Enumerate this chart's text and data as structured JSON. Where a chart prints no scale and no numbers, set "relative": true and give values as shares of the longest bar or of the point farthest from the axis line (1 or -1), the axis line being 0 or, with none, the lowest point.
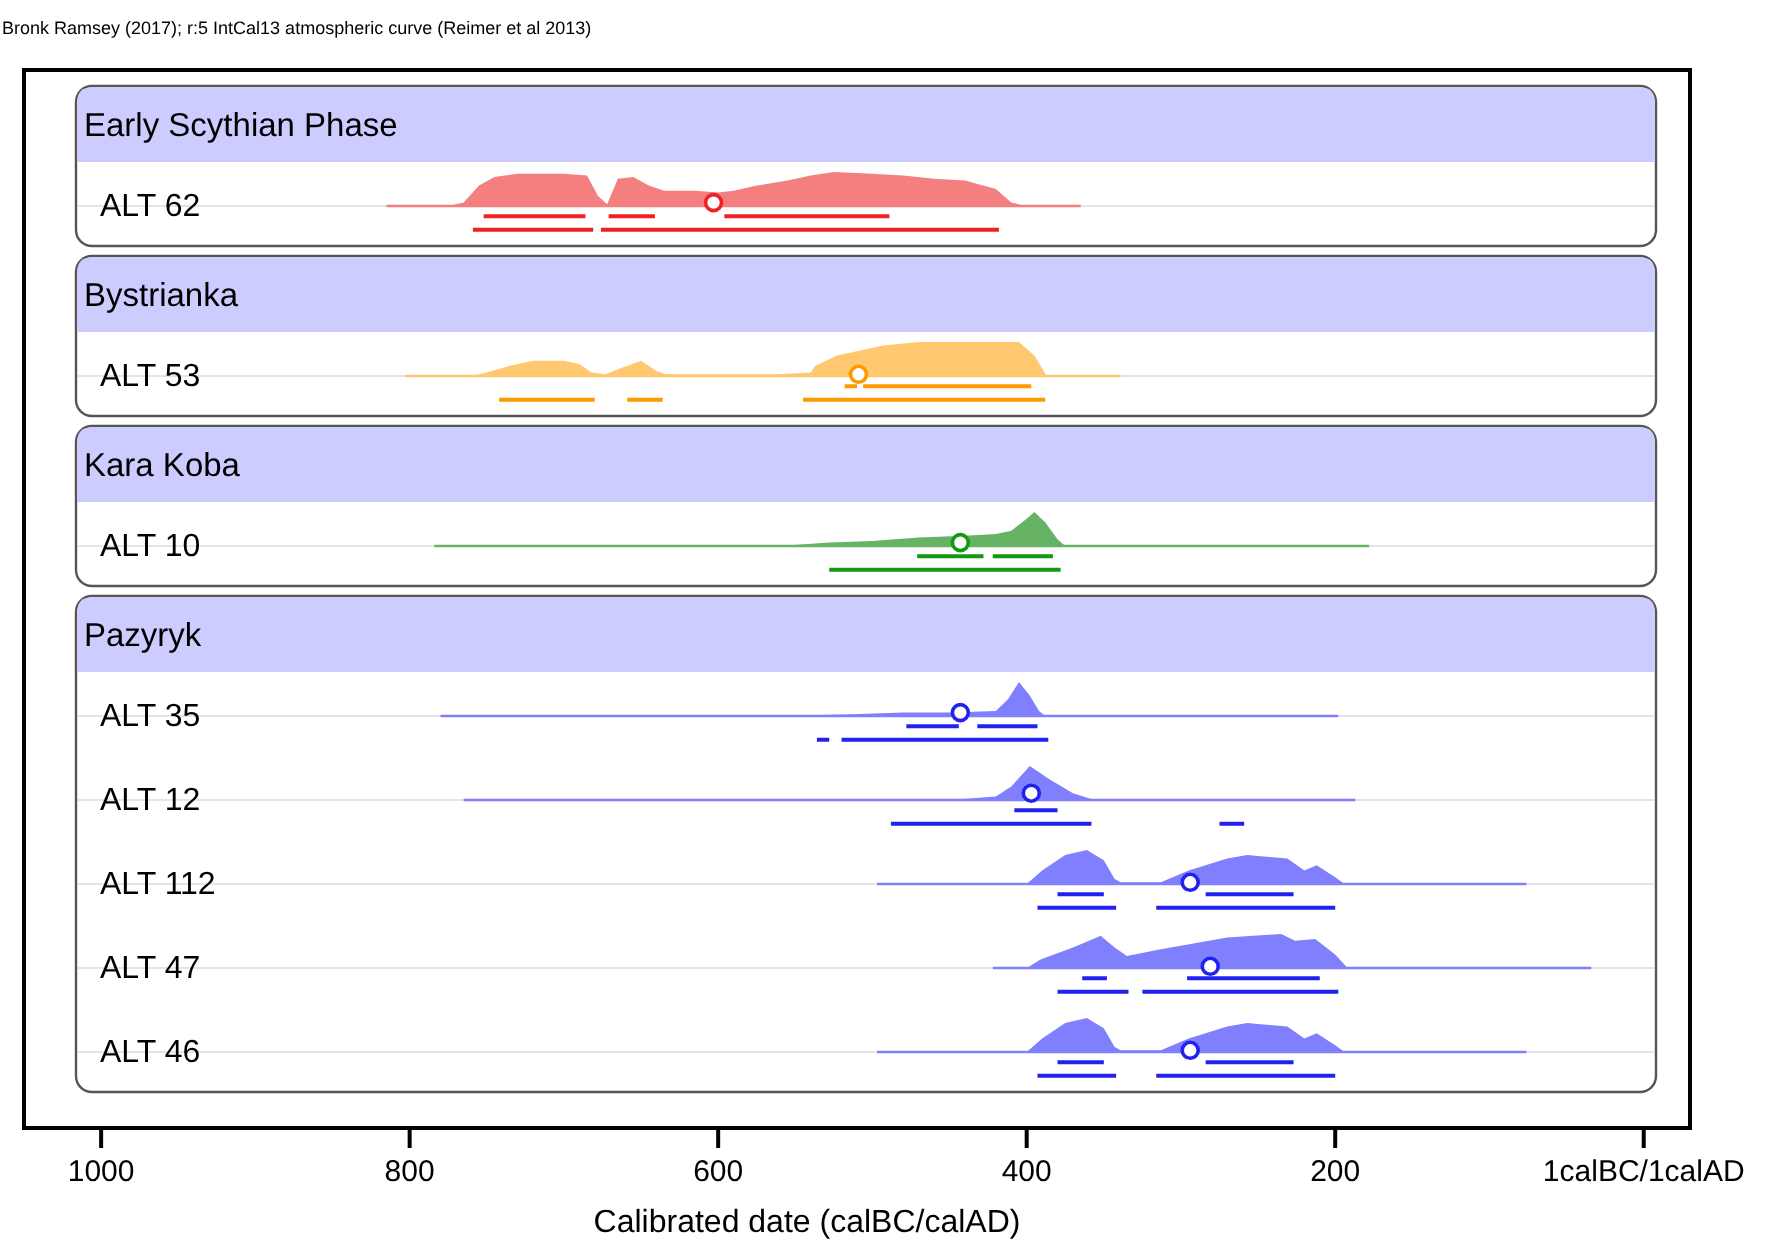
{
  "chart_data": [
    {
      "type": "area",
      "relative": true,
      "title": "Early Scythian Phase",
      "annotations": [
        "Bronk Ramsey (2017); r:5  IntCal13 atmospheric curve (Reimer et al 2013)"
      ],
      "xlim": [
        1050,
        -30
      ],
      "tick_labels": false,
      "series": [
        {
          "name": "ALT 62",
          "color": "#f47f7f",
          "x": [
            815,
            775,
            765,
            755,
            745,
            730,
            700,
            685,
            678,
            672,
            665,
            655,
            645,
            635,
            615,
            600,
            590,
            575,
            555,
            540,
            525,
            500,
            480,
            460,
            440,
            420,
            410,
            400,
            365
          ],
          "values": [
            0,
            0,
            0.1,
            0.6,
            0.85,
            0.95,
            0.95,
            0.9,
            0.3,
            0.05,
            0.8,
            0.85,
            0.6,
            0.45,
            0.45,
            0.4,
            0.45,
            0.6,
            0.75,
            0.9,
            1.0,
            0.95,
            0.9,
            0.8,
            0.75,
            0.5,
            0.1,
            0,
            0
          ]
        },
        {
          "type": "line",
          "color": "#ee2222",
          "x": [
            752,
            686,
            680,
            671,
            641,
            620,
            596,
            489
          ],
          "values": [
            -0.3,
            -0.3,
            null,
            -0.3,
            -0.3,
            null,
            -0.3,
            -0.3
          ]
        },
        {
          "type": "line",
          "color": "#ee2222",
          "x": [
            759,
            681,
            678,
            676,
            418
          ],
          "values": [
            -0.7,
            -0.7,
            null,
            -0.7,
            -0.7
          ]
        },
        {
          "type": "scatter",
          "marker": "circle",
          "color": "#ee2222",
          "x": [
            603
          ],
          "values": [
            0.1
          ]
        }
      ]
    },
    {
      "type": "area",
      "relative": true,
      "title": "Bystrianka",
      "xlim": [
        1050,
        -30
      ],
      "tick_labels": false,
      "series": [
        {
          "name": "ALT 53",
          "color": "#ffc870",
          "x": [
            803,
            760,
            750,
            735,
            720,
            700,
            690,
            682,
            673,
            665,
            650,
            640,
            634,
            560,
            540,
            537,
            523,
            493,
            470,
            440,
            405,
            395,
            387,
            339
          ],
          "values": [
            0,
            0,
            0.1,
            0.3,
            0.45,
            0.45,
            0.35,
            0.1,
            0.05,
            0.2,
            0.45,
            0.15,
            0.05,
            0.05,
            0.1,
            0.3,
            0.6,
            0.9,
            1.0,
            1.0,
            1.0,
            0.6,
            0,
            0
          ]
        },
        {
          "type": "line",
          "color": "#ff9900",
          "x": [
            518,
            510,
            508,
            506,
            397
          ],
          "values": [
            -0.3,
            -0.3,
            null,
            -0.3,
            -0.3
          ]
        },
        {
          "type": "line",
          "color": "#ff9900",
          "x": [
            742,
            680,
            670,
            659,
            636,
            590,
            545,
            388
          ],
          "values": [
            -0.7,
            -0.7,
            null,
            -0.7,
            -0.7,
            null,
            -0.7,
            -0.7
          ]
        },
        {
          "type": "scatter",
          "marker": "circle",
          "color": "#ff9900",
          "x": [
            509
          ],
          "values": [
            0.05
          ]
        }
      ]
    },
    {
      "type": "area",
      "relative": true,
      "title": "Kara Koba",
      "xlim": [
        1050,
        -30
      ],
      "tick_labels": false,
      "series": [
        {
          "name": "ALT 10",
          "color": "#66b366",
          "x": [
            784,
            560,
            528,
            500,
            470,
            440,
            420,
            410,
            400,
            395,
            388,
            380,
            375,
            178
          ],
          "values": [
            0,
            0,
            0.1,
            0.15,
            0.25,
            0.3,
            0.35,
            0.45,
            0.8,
            1.0,
            0.7,
            0.2,
            0,
            0
          ]
        },
        {
          "type": "line",
          "color": "#119911",
          "x": [
            471,
            428,
            425,
            422,
            383
          ],
          "values": [
            -0.3,
            -0.3,
            null,
            -0.3,
            -0.3
          ]
        },
        {
          "type": "line",
          "color": "#119911",
          "x": [
            528,
            378
          ],
          "values": [
            -0.7,
            -0.7
          ]
        },
        {
          "type": "scatter",
          "marker": "circle",
          "color": "#119911",
          "x": [
            443
          ],
          "values": [
            0.1
          ]
        }
      ]
    },
    {
      "type": "area",
      "relative": true,
      "title": "Pazyryk",
      "xlim": [
        1050,
        -30
      ],
      "tick_labels": false,
      "series": [
        {
          "name": "ALT 35",
          "color": "#8080ff",
          "x": [
            780,
            560,
            513,
            480,
            450,
            420,
            412,
            405,
            398,
            392,
            388,
            198
          ],
          "values": [
            0,
            0,
            0.05,
            0.1,
            0.1,
            0.15,
            0.5,
            1.0,
            0.6,
            0.15,
            0,
            0
          ]
        },
        {
          "type": "line",
          "color": "#2222ee",
          "x": [
            478,
            444,
            438,
            432,
            393
          ],
          "values": [
            -0.3,
            -0.3,
            null,
            -0.3,
            -0.3
          ]
        },
        {
          "type": "line",
          "color": "#2222ee",
          "x": [
            536,
            528,
            524,
            520,
            386
          ],
          "values": [
            -0.7,
            -0.7,
            null,
            -0.7,
            -0.7
          ]
        },
        {
          "type": "scatter",
          "marker": "circle",
          "color": "#2222ee",
          "x": [
            443
          ],
          "values": [
            0.1
          ]
        }
      ]
    },
    {
      "type": "area",
      "relative": true,
      "xlim": [
        1050,
        -30
      ],
      "tick_labels": false,
      "series": [
        {
          "name": "ALT 12",
          "color": "#8080ff",
          "x": [
            765,
            450,
            420,
            410,
            398,
            385,
            370,
            356,
            187
          ],
          "values": [
            0,
            0,
            0.1,
            0.4,
            1.0,
            0.6,
            0.2,
            0,
            0
          ]
        },
        {
          "type": "line",
          "color": "#2222ee",
          "x": [
            408,
            380
          ],
          "values": [
            -0.3,
            -0.3
          ]
        },
        {
          "type": "line",
          "color": "#2222ee",
          "x": [
            488,
            358,
            300,
            275,
            259
          ],
          "values": [
            -0.7,
            -0.7,
            null,
            -0.7,
            -0.7
          ]
        },
        {
          "type": "scatter",
          "marker": "circle",
          "color": "#2222ee",
          "x": [
            397
          ],
          "values": [
            0.2
          ]
        }
      ]
    },
    {
      "type": "area",
      "relative": true,
      "xlim": [
        1050,
        -30
      ],
      "tick_labels": false,
      "series": [
        {
          "name": "ALT 112",
          "color": "#8080ff",
          "x": [
            497,
            400,
            390,
            375,
            361,
            350,
            343,
            339,
            313,
            295,
            270,
            257,
            231,
            220,
            212,
            200,
            194,
            76
          ],
          "values": [
            0,
            0,
            0.4,
            0.85,
            1.0,
            0.7,
            0.15,
            0.05,
            0.05,
            0.4,
            0.75,
            0.85,
            0.75,
            0.4,
            0.55,
            0.2,
            0,
            0
          ]
        },
        {
          "type": "line",
          "color": "#2222ee",
          "x": [
            380,
            350,
            300,
            284,
            227
          ],
          "values": [
            -0.3,
            -0.3,
            null,
            -0.3,
            -0.3
          ]
        },
        {
          "type": "line",
          "color": "#2222ee",
          "x": [
            393,
            342,
            330,
            316,
            200
          ],
          "values": [
            -0.7,
            -0.7,
            null,
            -0.7,
            -0.7
          ]
        },
        {
          "type": "scatter",
          "marker": "circle",
          "color": "#2222ee",
          "x": [
            294
          ],
          "values": [
            0.05
          ]
        }
      ]
    },
    {
      "type": "area",
      "relative": true,
      "xlim": [
        1050,
        -30
      ],
      "tick_labels": false,
      "series": [
        {
          "name": "ALT 47",
          "color": "#8080ff",
          "x": [
            422,
            400,
            391,
            370,
            352,
            343,
            335,
            313,
            270,
            235,
            226,
            213,
            200,
            192,
            34
          ],
          "values": [
            0,
            0,
            0.25,
            0.6,
            0.95,
            0.6,
            0.35,
            0.55,
            0.9,
            1.0,
            0.8,
            0.85,
            0.4,
            0,
            0
          ]
        },
        {
          "type": "line",
          "color": "#2222ee",
          "x": [
            364,
            348,
            320,
            296,
            210
          ],
          "values": [
            -0.3,
            -0.3,
            null,
            -0.3,
            -0.3
          ]
        },
        {
          "type": "line",
          "color": "#2222ee",
          "x": [
            380,
            334,
            330,
            325,
            198
          ],
          "values": [
            -0.7,
            -0.7,
            null,
            -0.7,
            -0.7
          ]
        },
        {
          "type": "scatter",
          "marker": "circle",
          "color": "#2222ee",
          "x": [
            281
          ],
          "values": [
            0.05
          ]
        }
      ]
    },
    {
      "type": "area",
      "relative": true,
      "xlabel": "Calibrated date (calBC/calAD)",
      "xlim": [
        1050,
        -30
      ],
      "tick_labels": "x",
      "xticks": [
        1000,
        800,
        600,
        400,
        200,
        {
          "value": 0,
          "label": "1calBC/1calAD"
        }
      ],
      "series": [
        {
          "name": "ALT 46",
          "color": "#8080ff",
          "x": [
            497,
            400,
            390,
            375,
            361,
            350,
            343,
            339,
            313,
            295,
            270,
            257,
            231,
            220,
            212,
            200,
            194,
            76
          ],
          "values": [
            0,
            0,
            0.4,
            0.85,
            1.0,
            0.7,
            0.15,
            0.05,
            0.05,
            0.4,
            0.75,
            0.85,
            0.75,
            0.4,
            0.55,
            0.2,
            0,
            0
          ]
        },
        {
          "type": "line",
          "color": "#2222ee",
          "x": [
            380,
            350,
            300,
            284,
            227
          ],
          "values": [
            -0.3,
            -0.3,
            null,
            -0.3,
            -0.3
          ]
        },
        {
          "type": "line",
          "color": "#2222ee",
          "x": [
            393,
            342,
            330,
            316,
            200
          ],
          "values": [
            -0.7,
            -0.7,
            null,
            -0.7,
            -0.7
          ]
        },
        {
          "type": "scatter",
          "marker": "circle",
          "color": "#2222ee",
          "x": [
            294
          ],
          "values": [
            0.05
          ]
        }
      ]
    }
  ]
}
